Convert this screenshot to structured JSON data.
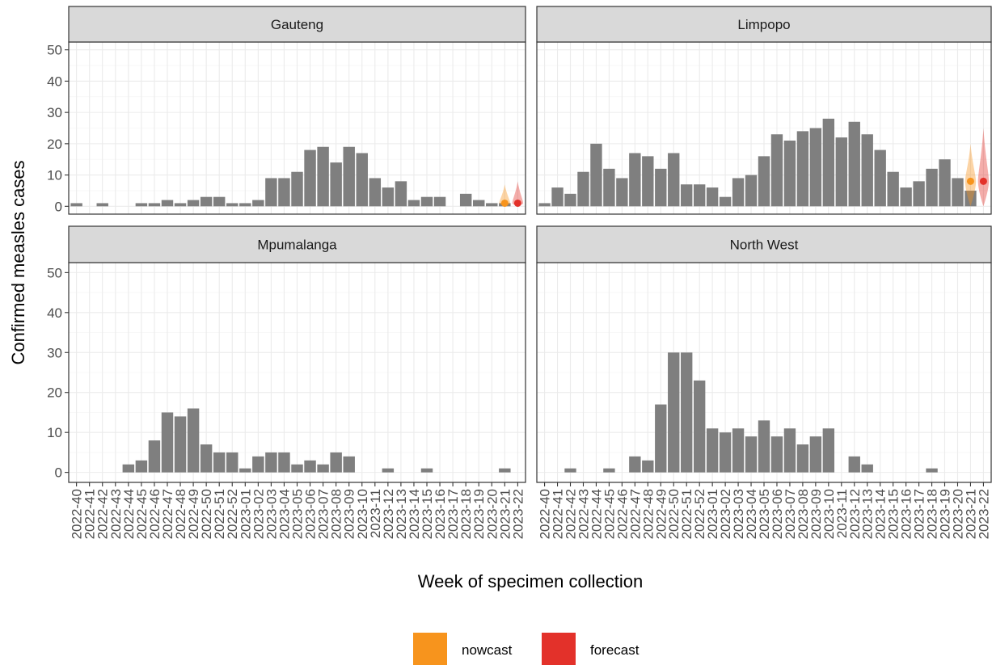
{
  "chart_data": {
    "type": "bar",
    "y_label": "Confirmed measles cases",
    "x_label": "Week of specimen collection",
    "categories": [
      "2022-40",
      "2022-41",
      "2022-42",
      "2022-43",
      "2022-44",
      "2022-45",
      "2022-46",
      "2022-47",
      "2022-48",
      "2022-49",
      "2022-50",
      "2022-51",
      "2022-52",
      "2023-01",
      "2023-02",
      "2023-03",
      "2023-04",
      "2023-05",
      "2023-06",
      "2023-07",
      "2023-08",
      "2023-09",
      "2023-10",
      "2023-11",
      "2023-12",
      "2023-13",
      "2023-14",
      "2023-15",
      "2023-16",
      "2023-17",
      "2023-18",
      "2023-19",
      "2023-20",
      "2023-21",
      "2023-22"
    ],
    "ylim": [
      -2.5,
      52.5
    ],
    "yticks": [
      0,
      10,
      20,
      30,
      40,
      50
    ],
    "grid": true,
    "bar_color": "#7f7f7f",
    "legend": [
      {
        "name": "nowcast",
        "color": "#f7941d"
      },
      {
        "name": "forecast",
        "color": "#e3312a"
      }
    ],
    "panels": [
      {
        "title": "Gauteng",
        "values": [
          1,
          0,
          1,
          0,
          0,
          1,
          1,
          2,
          1,
          2,
          3,
          3,
          1,
          1,
          2,
          9,
          9,
          11,
          18,
          19,
          14,
          19,
          17,
          9,
          6,
          8,
          2,
          3,
          3,
          0,
          4,
          2,
          1,
          1,
          null
        ],
        "nowcast": {
          "x": "2023-21",
          "median": 1,
          "lower": 0,
          "upper": 7
        },
        "forecast": {
          "x": "2023-22",
          "median": 1,
          "lower": 0,
          "upper": 8
        }
      },
      {
        "title": "Limpopo",
        "values": [
          1,
          6,
          4,
          11,
          20,
          12,
          9,
          17,
          16,
          12,
          17,
          7,
          7,
          6,
          3,
          9,
          10,
          16,
          23,
          21,
          24,
          25,
          28,
          22,
          27,
          23,
          18,
          11,
          6,
          8,
          12,
          15,
          9,
          5,
          null
        ],
        "nowcast": {
          "x": "2023-21",
          "median": 8,
          "lower": 0,
          "upper": 20
        },
        "forecast": {
          "x": "2023-22",
          "median": 8,
          "lower": 0,
          "upper": 25
        }
      },
      {
        "title": "Mpumalanga",
        "values": [
          0,
          0,
          0,
          0,
          2,
          3,
          8,
          15,
          14,
          16,
          7,
          5,
          5,
          1,
          4,
          5,
          5,
          2,
          3,
          2,
          5,
          4,
          0,
          0,
          1,
          0,
          0,
          1,
          0,
          0,
          0,
          0,
          0,
          1,
          null
        ]
      },
      {
        "title": "North West",
        "values": [
          0,
          0,
          1,
          0,
          0,
          1,
          0,
          4,
          3,
          17,
          30,
          30,
          23,
          11,
          10,
          11,
          9,
          13,
          9,
          11,
          7,
          9,
          11,
          0,
          4,
          2,
          0,
          0,
          0,
          0,
          1,
          0,
          0,
          0,
          null
        ]
      }
    ]
  }
}
